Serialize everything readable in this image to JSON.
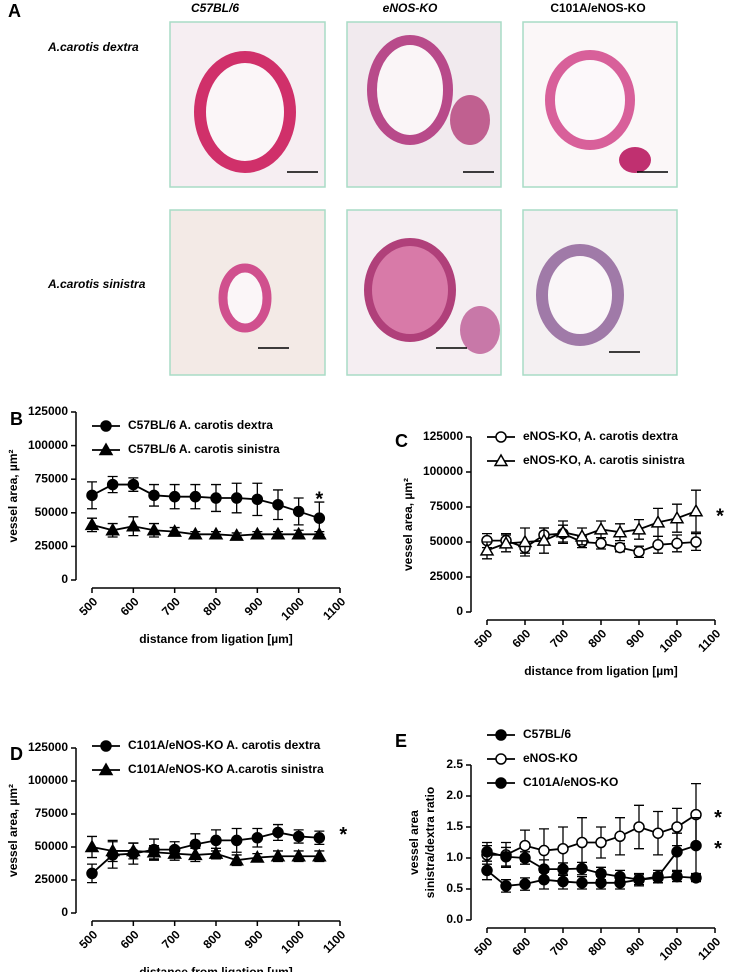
{
  "panel_a": {
    "letter": "A",
    "columns": [
      "C57BL/6",
      "eNOS-KO",
      "C101A/eNOS-KO"
    ],
    "rows": [
      "A.carotis dextra",
      "A.carotis sinistra"
    ]
  },
  "chart_data": [
    {
      "type": "line",
      "letter": "B",
      "xlabel": "distance from ligation [µm]",
      "ylabel": "vessel area, µm²",
      "x": [
        500,
        550,
        600,
        650,
        700,
        750,
        800,
        850,
        900,
        950,
        1000,
        1050
      ],
      "xlim": [
        500,
        1100
      ],
      "xticks": [
        500,
        600,
        700,
        800,
        900,
        1000,
        1100
      ],
      "ylim": [
        0,
        125000
      ],
      "yticks": [
        0,
        25000,
        50000,
        75000,
        100000,
        125000
      ],
      "series": [
        {
          "name": "C57BL/6 A. carotis dextra",
          "color": "#000000",
          "marker": "circle",
          "filled": true,
          "values": [
            63000,
            71000,
            71000,
            63000,
            62000,
            62000,
            61000,
            61000,
            60000,
            56000,
            51000,
            46000
          ],
          "errors": [
            10000,
            6000,
            5000,
            8000,
            9000,
            9000,
            10000,
            11000,
            12000,
            11000,
            10000,
            12000
          ]
        },
        {
          "name": "C57BL/6 A. carotis sinistra",
          "color": "#000000",
          "marker": "triangle",
          "filled": true,
          "values": [
            41000,
            37000,
            40000,
            37000,
            36000,
            34000,
            34000,
            33000,
            34000,
            34000,
            34000,
            34000
          ],
          "errors": [
            5000,
            5000,
            7000,
            5000,
            3000,
            2000,
            2000,
            2000,
            2000,
            2000,
            3000,
            2000
          ]
        }
      ],
      "annotations": [
        "*"
      ]
    },
    {
      "type": "line",
      "letter": "C",
      "xlabel": "distance from ligation [µm]",
      "ylabel": "vessel area, µm²",
      "x": [
        500,
        550,
        600,
        650,
        700,
        750,
        800,
        850,
        900,
        950,
        1000,
        1050
      ],
      "xlim": [
        500,
        1100
      ],
      "xticks": [
        500,
        600,
        700,
        800,
        900,
        1000,
        1100
      ],
      "ylim": [
        0,
        125000
      ],
      "yticks": [
        0,
        25000,
        50000,
        75000,
        100000,
        125000
      ],
      "series": [
        {
          "name": "eNOS-KO,  A. carotis dextra",
          "color": "#000000",
          "marker": "circle",
          "filled": false,
          "values": [
            51000,
            51000,
            46000,
            55000,
            56000,
            50000,
            49000,
            46000,
            43000,
            48000,
            49000,
            50000
          ],
          "errors": [
            5000,
            5000,
            4000,
            5000,
            6000,
            4000,
            4000,
            3000,
            4000,
            6000,
            6000,
            6000
          ]
        },
        {
          "name": "eNOS-KO,  A. carotis sinistra",
          "color": "#000000",
          "marker": "triangle",
          "filled": false,
          "values": [
            44000,
            49000,
            50000,
            51000,
            57000,
            54000,
            59000,
            57000,
            59000,
            64000,
            67000,
            72000
          ],
          "errors": [
            6000,
            6000,
            10000,
            9000,
            8000,
            6000,
            6000,
            6000,
            7000,
            10000,
            10000,
            15000
          ]
        }
      ],
      "annotations": [
        "*"
      ]
    },
    {
      "type": "line",
      "letter": "D",
      "xlabel": "distance from ligation [µm]",
      "ylabel": "vessel area, µm²",
      "x": [
        500,
        550,
        600,
        650,
        700,
        750,
        800,
        850,
        900,
        950,
        1000,
        1050
      ],
      "xlim": [
        500,
        1100
      ],
      "xticks": [
        500,
        600,
        700,
        800,
        900,
        1000,
        1100
      ],
      "ylim": [
        0,
        125000
      ],
      "yticks": [
        0,
        25000,
        50000,
        75000,
        100000,
        125000
      ],
      "series": [
        {
          "name": "C101A/eNOS-KO  A. carotis dextra",
          "color": "#000000",
          "marker": "circle",
          "filled": true,
          "values": [
            30000,
            44000,
            45000,
            48000,
            48000,
            52000,
            55000,
            55000,
            57000,
            61000,
            58000,
            57000
          ],
          "errors": [
            7000,
            10000,
            8000,
            8000,
            6000,
            8000,
            8000,
            9000,
            7000,
            6000,
            5000,
            5000
          ]
        },
        {
          "name": "C101A/eNOS-KO  A.carotis sinistra",
          "color": "#000000",
          "marker": "triangle",
          "filled": true,
          "values": [
            50000,
            47000,
            47000,
            46000,
            45000,
            44000,
            45000,
            40000,
            42000,
            43000,
            43000,
            43000
          ],
          "errors": [
            8000,
            8000,
            6000,
            5000,
            5000,
            5000,
            4000,
            4000,
            3000,
            4000,
            4000,
            4000
          ]
        }
      ],
      "annotations": [
        "*"
      ]
    },
    {
      "type": "line",
      "letter": "E",
      "xlabel": "distance from ligation [µm]",
      "ylabel": "vessel area",
      "ylabel2": "sinistra/dextra ratio",
      "x": [
        500,
        550,
        600,
        650,
        700,
        750,
        800,
        850,
        900,
        950,
        1000,
        1050
      ],
      "xlim": [
        500,
        1100
      ],
      "xticks": [
        500,
        600,
        700,
        800,
        900,
        1000,
        1100
      ],
      "ylim": [
        0,
        2.5
      ],
      "yticks": [
        {
          "value": 0,
          "label": "0.0"
        },
        0.5,
        {
          "value": 1,
          "label": "1.0"
        },
        1.5,
        {
          "value": 2,
          "label": "2.0"
        },
        2.5
      ],
      "series": [
        {
          "name": "C57BL/6",
          "color": "#000000",
          "marker": "circle",
          "filled": true,
          "values": [
            0.8,
            0.55,
            0.58,
            0.65,
            0.62,
            0.6,
            0.6,
            0.6,
            0.65,
            0.68,
            0.7,
            0.68
          ],
          "errors": [
            0.15,
            0.1,
            0.1,
            0.15,
            0.12,
            0.1,
            0.1,
            0.1,
            0.08,
            0.08,
            0.08,
            0.06
          ]
        },
        {
          "name": "eNOS-KO",
          "color": "#000000",
          "marker": "circle",
          "filled": false,
          "values": [
            1.05,
            1.05,
            1.2,
            1.12,
            1.15,
            1.25,
            1.25,
            1.35,
            1.5,
            1.4,
            1.5,
            1.7
          ],
          "errors": [
            0.15,
            0.2,
            0.25,
            0.35,
            0.35,
            0.4,
            0.25,
            0.3,
            0.35,
            0.35,
            0.3,
            0.5
          ]
        },
        {
          "name": "C101A/eNOS-KO",
          "color": "#000000",
          "marker": "circle",
          "filled": true,
          "values": [
            1.1,
            1.02,
            1.0,
            0.82,
            0.82,
            0.83,
            0.75,
            0.7,
            0.65,
            0.7,
            1.1,
            1.2
          ],
          "errors": [
            0.15,
            0.15,
            0.1,
            0.15,
            0.1,
            0.1,
            0.1,
            0.1,
            0.1,
            0.1,
            0.3,
            0.45
          ]
        }
      ],
      "annotations": [
        "*",
        "*"
      ]
    }
  ]
}
